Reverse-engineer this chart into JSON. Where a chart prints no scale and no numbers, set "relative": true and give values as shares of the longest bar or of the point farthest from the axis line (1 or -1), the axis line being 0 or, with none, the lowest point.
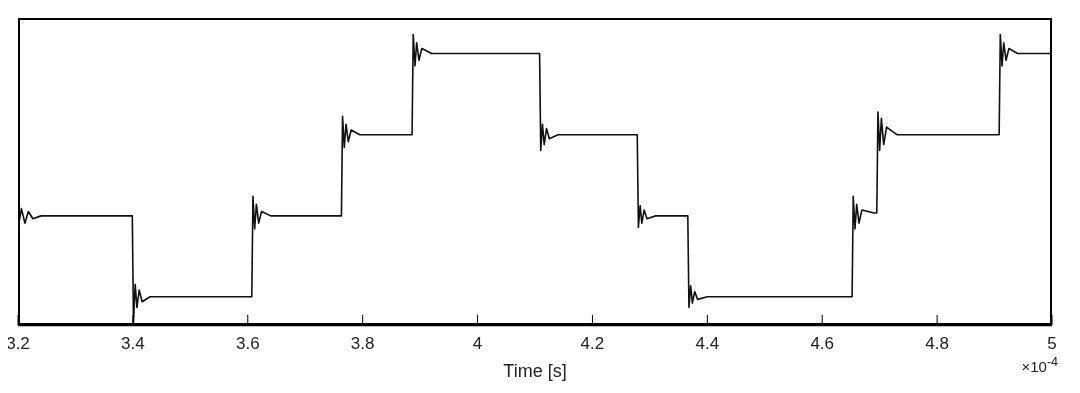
{
  "chart_data": {
    "type": "line",
    "xlabel": "Time [s]",
    "annotations": [
      "×10$^{-4}$"
    ],
    "relative": true,
    "xlim": [
      3.2,
      5
    ],
    "xticks": [
      3.2,
      3.4,
      3.6,
      3.8,
      4,
      4.2,
      4.4,
      4.6,
      4.8,
      5
    ],
    "grid": false,
    "legend": false,
    "marker": "none",
    "line_style": "solid",
    "x": [
      3.2,
      3.206,
      3.212,
      3.218,
      3.226,
      3.24,
      3.399,
      3.401,
      3.404,
      3.407,
      3.411,
      3.416,
      3.43,
      3.607,
      3.609,
      3.612,
      3.615,
      3.619,
      3.624,
      3.64,
      3.763,
      3.765,
      3.768,
      3.771,
      3.775,
      3.78,
      3.795,
      3.886,
      3.888,
      3.891,
      3.894,
      3.898,
      3.903,
      3.92,
      4.108,
      4.11,
      4.113,
      4.116,
      4.12,
      4.125,
      4.14,
      4.278,
      4.28,
      4.283,
      4.286,
      4.29,
      4.295,
      4.31,
      4.366,
      4.368,
      4.371,
      4.374,
      4.378,
      4.383,
      4.4,
      4.652,
      4.654,
      4.657,
      4.66,
      4.664,
      4.669,
      4.69,
      4.695,
      4.697,
      4.7,
      4.703,
      4.707,
      4.712,
      4.73,
      4.908,
      4.91,
      4.913,
      4.916,
      4.92,
      4.925,
      4.94,
      5
    ],
    "series": [
      {
        "color": "#111111",
        "values": [
          0.33,
          0.4,
          0.35,
          0.39,
          0.365,
          0.375,
          0.375,
          0.007,
          0.14,
          0.06,
          0.12,
          0.08,
          0.097,
          0.097,
          0.442,
          0.33,
          0.415,
          0.35,
          0.39,
          0.375,
          0.375,
          0.717,
          0.61,
          0.69,
          0.63,
          0.67,
          0.654,
          0.654,
          1,
          0.89,
          0.97,
          0.91,
          0.95,
          0.933,
          0.933,
          0.6,
          0.69,
          0.62,
          0.675,
          0.64,
          0.654,
          0.654,
          0.335,
          0.41,
          0.35,
          0.395,
          0.365,
          0.375,
          0.375,
          0.06,
          0.135,
          0.075,
          0.115,
          0.088,
          0.097,
          0.097,
          0.442,
          0.33,
          0.415,
          0.35,
          0.395,
          0.385,
          0.385,
          0.732,
          0.6,
          0.71,
          0.62,
          0.68,
          0.654,
          0.654,
          1,
          0.89,
          0.97,
          0.91,
          0.95,
          0.933,
          0.933
        ]
      }
    ]
  }
}
